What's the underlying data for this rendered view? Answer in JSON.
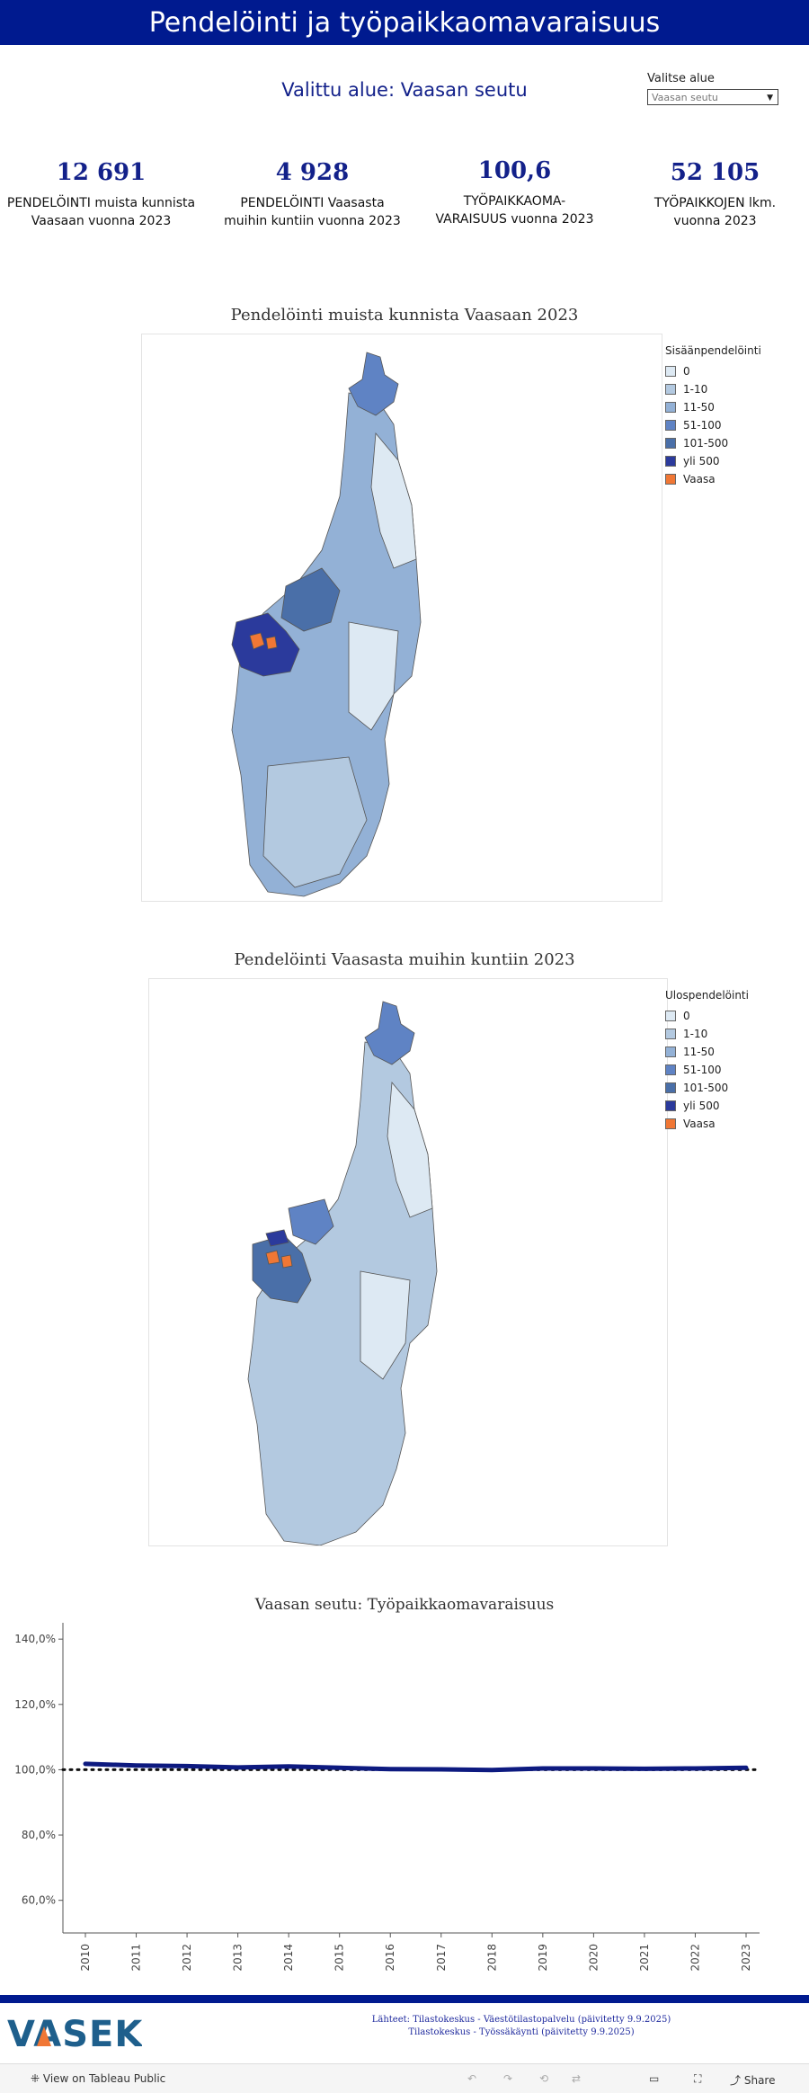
{
  "header": {
    "title": "Pendelöinti ja työpaikkaomavaraisuus"
  },
  "selection": {
    "heading": "Valittu alue: Vaasan seutu",
    "label": "Valitse alue",
    "value": "Vaasan seutu"
  },
  "kpis": [
    {
      "value": "12  691",
      "line1": "PENDELÖINTI muista kunnista",
      "line2": "Vaasaan vuonna 2023"
    },
    {
      "value": "4  928",
      "line1": "PENDELÖINTI Vaasasta",
      "line2": "muihin kuntiin vuonna 2023"
    },
    {
      "value": "100,6",
      "line1": "TYÖPAIKKAOMA-",
      "line2": "VARAISUUS vuonna 2023"
    },
    {
      "value": "52 105",
      "line1": "TYÖPAIKKOJEN lkm.",
      "line2": "vuonna 2023"
    }
  ],
  "map1": {
    "title": "Pendelöinti muista kunnista Vaasaan 2023",
    "legend_title": "Sisäänpendelöinti",
    "legend": [
      {
        "label": "0",
        "color": "#dde9f3"
      },
      {
        "label": "1-10",
        "color": "#b3c9e0"
      },
      {
        "label": "11-50",
        "color": "#93b1d6"
      },
      {
        "label": "51-100",
        "color": "#5f83c4"
      },
      {
        "label": "101-500",
        "color": "#4a6fa8"
      },
      {
        "label": "yli 500",
        "color": "#2b3a9c"
      },
      {
        "label": "Vaasa",
        "color": "#f07735"
      }
    ]
  },
  "map2": {
    "title": "Pendelöinti Vaasasta muihin kuntiin 2023",
    "legend_title": "Ulospendelöinti",
    "legend": [
      {
        "label": "0",
        "color": "#dde9f3"
      },
      {
        "label": "1-10",
        "color": "#b3c9e0"
      },
      {
        "label": "11-50",
        "color": "#93b1d6"
      },
      {
        "label": "51-100",
        "color": "#5f83c4"
      },
      {
        "label": "101-500",
        "color": "#4a6fa8"
      },
      {
        "label": "yli 500",
        "color": "#2b3a9c"
      },
      {
        "label": "Vaasa",
        "color": "#f07735"
      }
    ]
  },
  "chart_data": {
    "type": "line",
    "title": "Vaasan seutu: Työpaikkaomavaraisuus",
    "x": [
      "2010",
      "2011",
      "2012",
      "2013",
      "2014",
      "2015",
      "2016",
      "2017",
      "2018",
      "2019",
      "2020",
      "2021",
      "2022",
      "2023"
    ],
    "series": [
      {
        "values": [
          101.8,
          101.3,
          101.1,
          100.7,
          101.0,
          100.6,
          100.2,
          100.1,
          99.9,
          100.4,
          100.4,
          100.3,
          100.4,
          100.6
        ],
        "color": "#0d1a80"
      }
    ],
    "reference_line": 100,
    "ylim": [
      50,
      145
    ],
    "yticks": [
      "60,0%",
      "80,0%",
      "100,0%",
      "120,0%",
      "140,0%"
    ],
    "ytick_values": [
      60,
      80,
      100,
      120,
      140
    ],
    "grid": false
  },
  "footer": {
    "logo": "VASEK",
    "source1": "Lähteet: Tilastokeskus - Väestötilastopalvelu (päivitetty 9.9.2025)",
    "source2": "Tilastokeskus - Työssäkäynti (päivitetty 9.9.2025)"
  },
  "toolbar": {
    "view_label": "View on Tableau Public",
    "share_label": "Share"
  }
}
